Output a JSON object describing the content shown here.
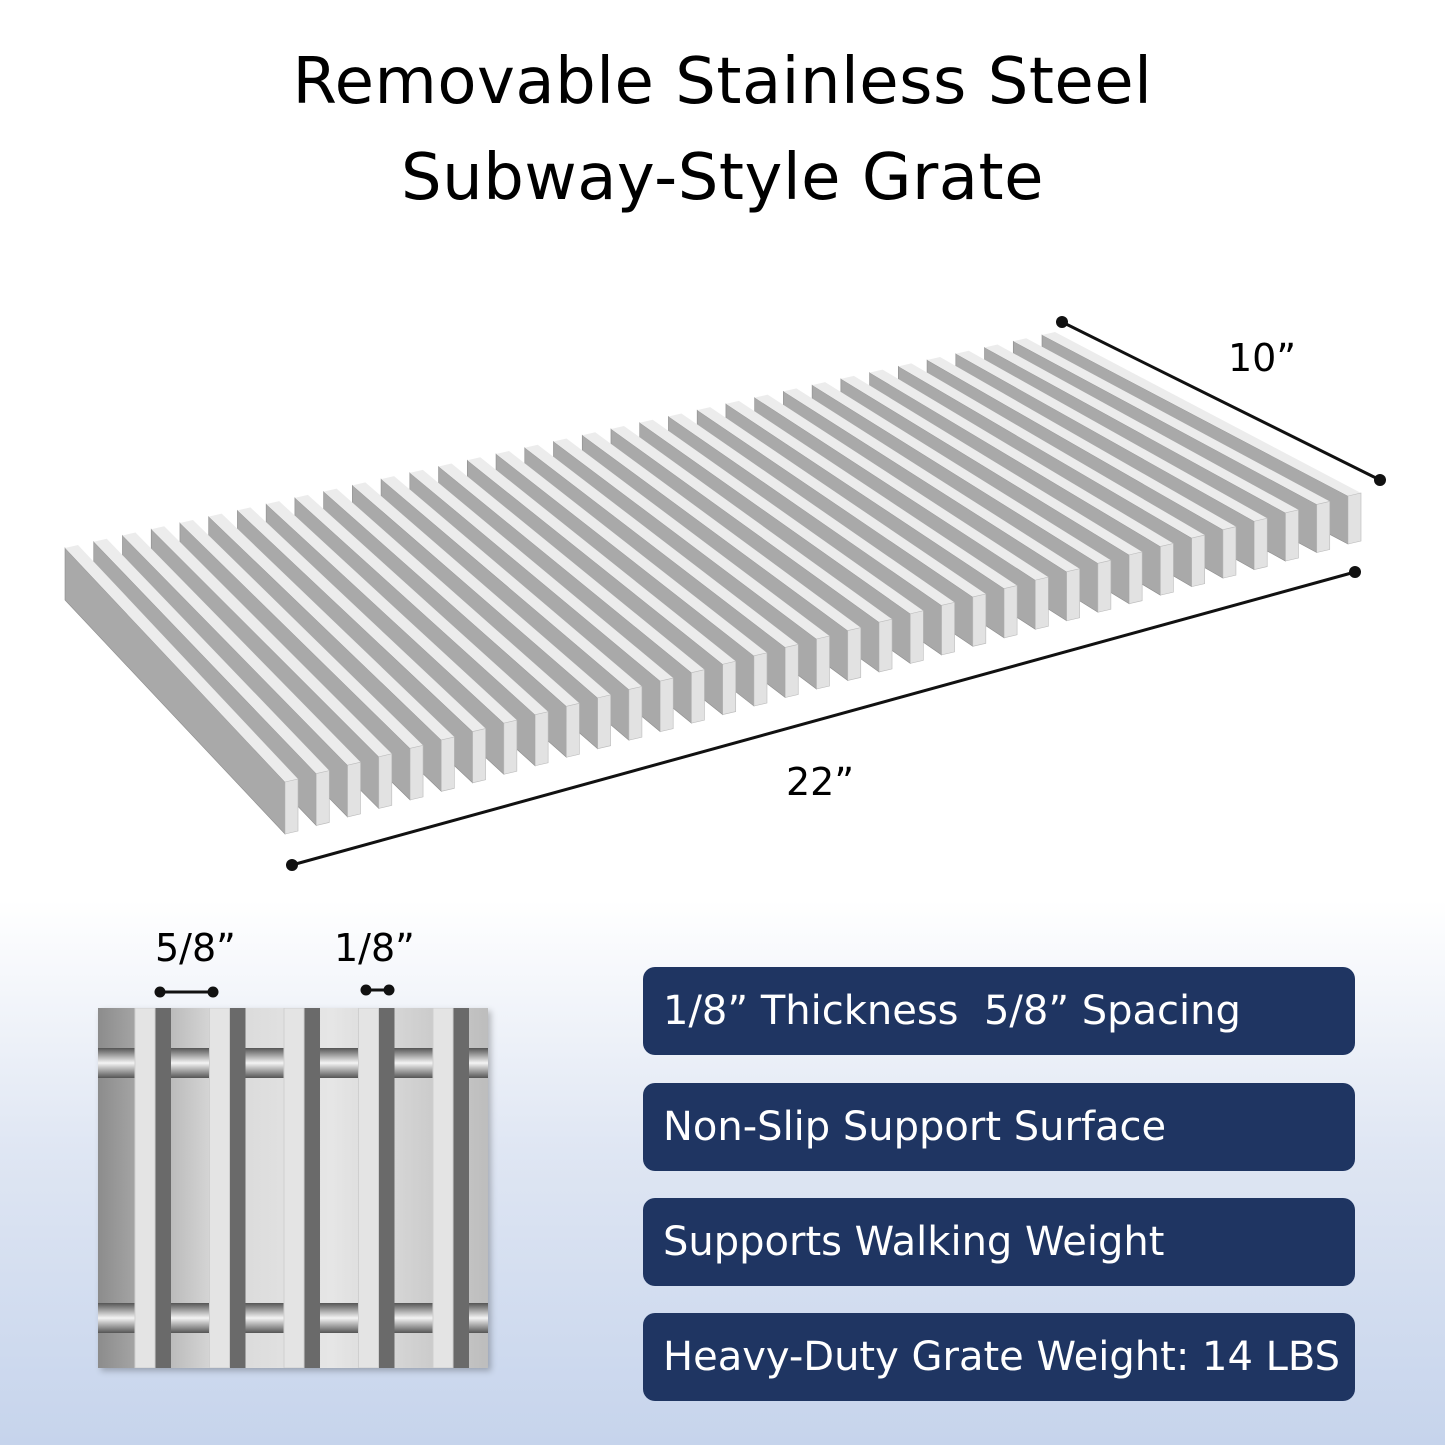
{
  "title": {
    "line1": "Removable Stainless Steel",
    "line2": "Subway-Style Grate"
  },
  "dimensions": {
    "width": "10”",
    "length": "22”",
    "spacing": "5/8”",
    "thickness": "1/8”"
  },
  "features": [
    "1/8” Thickness  5/8” Spacing",
    "Non-Slip Support Surface",
    "Supports Walking Weight",
    "Heavy-Duty Grate Weight: 14 LBS"
  ],
  "colors": {
    "pill": "#1f3562",
    "steel": "#a8a8a8"
  }
}
